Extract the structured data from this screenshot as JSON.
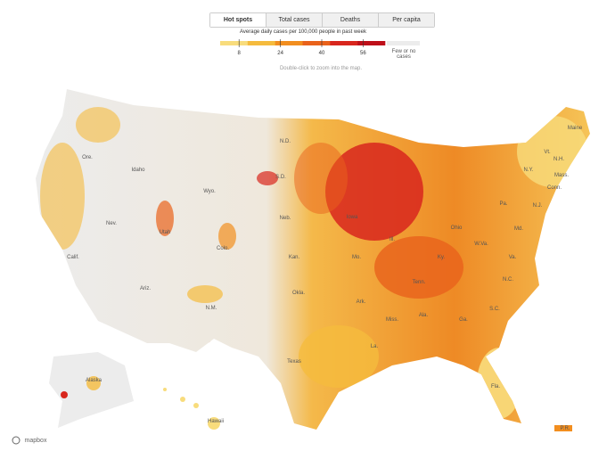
{
  "tabs": [
    {
      "label": "Hot spots",
      "selected": true
    },
    {
      "label": "Total cases",
      "selected": false
    },
    {
      "label": "Deaths",
      "selected": false
    },
    {
      "label": "Per capita",
      "selected": false
    }
  ],
  "legend": {
    "title": "Average daily cases per 100,000 people in past week",
    "colors": [
      "#f8dc7c",
      "#f5bb3d",
      "#f28e1f",
      "#e9621b",
      "#d8261d",
      "#be0f19"
    ],
    "ticks": [
      8,
      24,
      40,
      56
    ],
    "no_data_label": "Few or no cases",
    "no_data_color": "#ececec"
  },
  "hint": "Double-click to zoom into the map.",
  "labels": [
    "Ore.",
    "Idaho",
    "Wyo.",
    "Nev.",
    "Calif.",
    "Utah",
    "Colo.",
    "Ariz.",
    "N.M.",
    "Texas",
    "Okla.",
    "Kan.",
    "Neb.",
    "S.D.",
    "N.D.",
    "Iowa",
    "Ill.",
    "Mo.",
    "Ark.",
    "Ohio",
    "Ky.",
    "Tenn.",
    "Miss.",
    "La.",
    "Ala.",
    "Ga.",
    "Fla.",
    "S.C.",
    "N.C.",
    "Va.",
    "W.Va.",
    "Md.",
    "Pa.",
    "N.J.",
    "N.Y.",
    "Vt.",
    "N.H.",
    "Maine",
    "Mass.",
    "Conn.",
    "Alaska",
    "Hawaii",
    "P.R."
  ],
  "attribution": "mapbox"
}
